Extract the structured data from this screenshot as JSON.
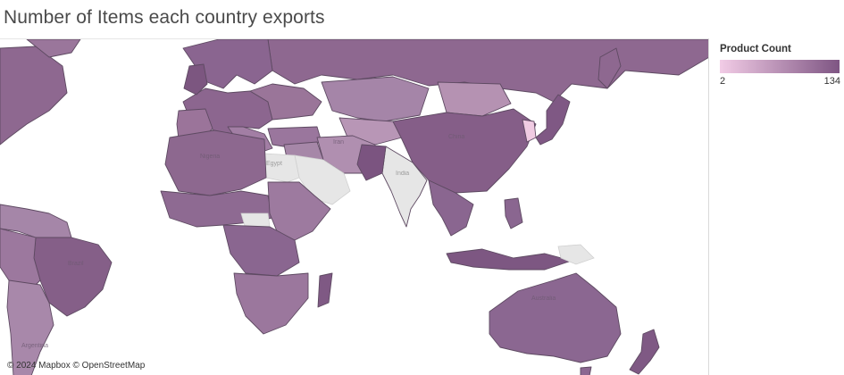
{
  "title": "Number of Items each country exports",
  "legend": {
    "title": "Product Count",
    "min_label": "2",
    "max_label": "134",
    "color_low": "#f2cce6",
    "color_high": "#7e5583"
  },
  "no_data_color": "#e6e6e6",
  "attribution": "© 2024 Mapbox © OpenStreetMap",
  "map_labels": {
    "egypt": "Egypt",
    "india": "India",
    "china": "China",
    "australia": "Australia",
    "brazil": "Brazil",
    "iran": "Iran",
    "nigeria": "Nigeria",
    "argentina": "Argentina"
  }
}
